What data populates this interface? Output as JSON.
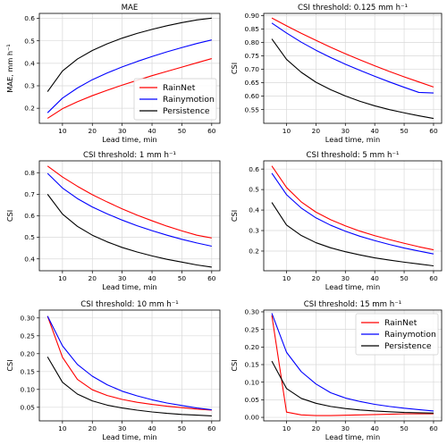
{
  "figure": {
    "legend": [
      {
        "name": "RainNet",
        "color": "#ff0000"
      },
      {
        "name": "Rainymotion",
        "color": "#0000ff"
      },
      {
        "name": "Persistence",
        "color": "#000000"
      }
    ]
  },
  "chart_data": [
    {
      "type": "line",
      "title": "MAE",
      "xlabel": "Lead time, min",
      "ylabel": "MAE, mm h⁻¹",
      "xlim": [
        2.25,
        62.75
      ],
      "ylim": [
        0.133,
        0.622
      ],
      "xticks": [
        10,
        20,
        30,
        40,
        50,
        60
      ],
      "yticks": [
        0.2,
        0.3,
        0.4,
        0.5,
        0.6
      ],
      "ytick_labels": [
        "0.2",
        "0.3",
        "0.4",
        "0.5",
        "0.6"
      ],
      "grid": true,
      "legend": "lower-right",
      "x": [
        5,
        10,
        15,
        20,
        25,
        30,
        35,
        40,
        45,
        50,
        55,
        60
      ],
      "series": [
        {
          "name": "RainNet",
          "color": "#ff0000",
          "values": [
            0.155,
            0.198,
            0.229,
            0.256,
            0.28,
            0.303,
            0.324,
            0.345,
            0.364,
            0.383,
            0.402,
            0.421
          ]
        },
        {
          "name": "Rainymotion",
          "color": "#0000ff",
          "values": [
            0.18,
            0.245,
            0.29,
            0.327,
            0.357,
            0.384,
            0.408,
            0.43,
            0.451,
            0.47,
            0.488,
            0.504
          ]
        },
        {
          "name": "Persistence",
          "color": "#000000",
          "values": [
            0.274,
            0.366,
            0.419,
            0.457,
            0.487,
            0.512,
            0.533,
            0.551,
            0.567,
            0.581,
            0.593,
            0.601
          ]
        }
      ]
    },
    {
      "type": "line",
      "title": "CSI threshold: 0.125 mm h⁻¹",
      "xlabel": "Lead time, min",
      "ylabel": "CSI",
      "xlim": [
        2.25,
        62.75
      ],
      "ylim": [
        0.499,
        0.908
      ],
      "xticks": [
        10,
        20,
        30,
        40,
        50,
        60
      ],
      "yticks": [
        0.55,
        0.6,
        0.65,
        0.7,
        0.75,
        0.8,
        0.85,
        0.9
      ],
      "ytick_labels": [
        "0.55",
        "0.60",
        "0.65",
        "0.70",
        "0.75",
        "0.80",
        "0.85",
        "0.90"
      ],
      "grid": true,
      "x": [
        5,
        10,
        15,
        20,
        25,
        30,
        35,
        40,
        45,
        50,
        55,
        60
      ],
      "series": [
        {
          "name": "RainNet",
          "color": "#ff0000",
          "values": [
            0.891,
            0.862,
            0.834,
            0.808,
            0.782,
            0.758,
            0.735,
            0.713,
            0.692,
            0.672,
            0.653,
            0.634
          ]
        },
        {
          "name": "Rainymotion",
          "color": "#0000ff",
          "values": [
            0.872,
            0.835,
            0.801,
            0.771,
            0.744,
            0.719,
            0.696,
            0.674,
            0.653,
            0.633,
            0.614,
            0.612
          ]
        },
        {
          "name": "Persistence",
          "color": "#000000",
          "values": [
            0.813,
            0.737,
            0.689,
            0.652,
            0.624,
            0.601,
            0.581,
            0.564,
            0.55,
            0.538,
            0.527,
            0.517
          ]
        }
      ]
    },
    {
      "type": "line",
      "title": "CSI threshold: 1 mm h⁻¹",
      "xlabel": "Lead time, min",
      "ylabel": "CSI",
      "xlim": [
        2.25,
        62.75
      ],
      "ylim": [
        0.345,
        0.855
      ],
      "xticks": [
        10,
        20,
        30,
        40,
        50,
        60
      ],
      "yticks": [
        0.4,
        0.5,
        0.6,
        0.7,
        0.8
      ],
      "ytick_labels": [
        "0.4",
        "0.5",
        "0.6",
        "0.7",
        "0.8"
      ],
      "grid": true,
      "x": [
        5,
        10,
        15,
        20,
        25,
        30,
        35,
        40,
        45,
        50,
        55,
        60
      ],
      "series": [
        {
          "name": "RainNet",
          "color": "#ff0000",
          "values": [
            0.831,
            0.78,
            0.737,
            0.698,
            0.664,
            0.632,
            0.603,
            0.577,
            0.552,
            0.53,
            0.51,
            0.497
          ]
        },
        {
          "name": "Rainymotion",
          "color": "#0000ff",
          "values": [
            0.797,
            0.729,
            0.68,
            0.641,
            0.609,
            0.58,
            0.554,
            0.531,
            0.51,
            0.491,
            0.474,
            0.459
          ]
        },
        {
          "name": "Persistence",
          "color": "#000000",
          "values": [
            0.7,
            0.608,
            0.551,
            0.51,
            0.479,
            0.453,
            0.432,
            0.414,
            0.398,
            0.385,
            0.372,
            0.362
          ]
        }
      ]
    },
    {
      "type": "line",
      "title": "CSI threshold: 5 mm h⁻¹",
      "xlabel": "Lead time, min",
      "ylabel": "CSI",
      "xlim": [
        2.25,
        62.75
      ],
      "ylim": [
        0.104,
        0.64
      ],
      "xticks": [
        10,
        20,
        30,
        40,
        50,
        60
      ],
      "yticks": [
        0.2,
        0.3,
        0.4,
        0.5,
        0.6
      ],
      "ytick_labels": [
        "0.2",
        "0.3",
        "0.4",
        "0.5",
        "0.6"
      ],
      "grid": true,
      "x": [
        5,
        10,
        15,
        20,
        25,
        30,
        35,
        40,
        45,
        50,
        55,
        60
      ],
      "series": [
        {
          "name": "RainNet",
          "color": "#ff0000",
          "values": [
            0.615,
            0.51,
            0.44,
            0.39,
            0.353,
            0.323,
            0.297,
            0.275,
            0.256,
            0.238,
            0.221,
            0.206
          ]
        },
        {
          "name": "Rainymotion",
          "color": "#0000ff",
          "values": [
            0.58,
            0.475,
            0.41,
            0.362,
            0.326,
            0.297,
            0.272,
            0.251,
            0.232,
            0.215,
            0.2,
            0.186
          ]
        },
        {
          "name": "Persistence",
          "color": "#000000",
          "values": [
            0.437,
            0.327,
            0.276,
            0.241,
            0.216,
            0.197,
            0.181,
            0.167,
            0.156,
            0.146,
            0.137,
            0.128
          ]
        }
      ]
    },
    {
      "type": "line",
      "title": "CSI threshold: 10 mm h⁻¹",
      "xlabel": "Lead time, min",
      "ylabel": "CSI",
      "xlim": [
        2.25,
        62.75
      ],
      "ylim": [
        0.012,
        0.322
      ],
      "xticks": [
        10,
        20,
        30,
        40,
        50,
        60
      ],
      "yticks": [
        0.05,
        0.1,
        0.15,
        0.2,
        0.25,
        0.3
      ],
      "ytick_labels": [
        "0.05",
        "0.10",
        "0.15",
        "0.20",
        "0.25",
        "0.30"
      ],
      "grid": true,
      "x": [
        5,
        10,
        15,
        20,
        25,
        30,
        35,
        40,
        45,
        50,
        55,
        60
      ],
      "series": [
        {
          "name": "RainNet",
          "color": "#ff0000",
          "values": [
            0.305,
            0.19,
            0.128,
            0.099,
            0.083,
            0.072,
            0.064,
            0.058,
            0.053,
            0.049,
            0.045,
            0.042
          ]
        },
        {
          "name": "Rainymotion",
          "color": "#0000ff",
          "values": [
            0.305,
            0.222,
            0.17,
            0.137,
            0.113,
            0.095,
            0.082,
            0.071,
            0.062,
            0.055,
            0.048,
            0.043
          ]
        },
        {
          "name": "Persistence",
          "color": "#000000",
          "values": [
            0.191,
            0.12,
            0.087,
            0.068,
            0.056,
            0.048,
            0.042,
            0.037,
            0.033,
            0.03,
            0.028,
            0.026
          ]
        }
      ]
    },
    {
      "type": "line",
      "title": "CSI threshold: 15 mm h⁻¹",
      "xlabel": "Lead time, min",
      "ylabel": "CSI",
      "xlim": [
        2.25,
        62.75
      ],
      "ylim": [
        -0.01,
        0.305
      ],
      "xticks": [
        10,
        20,
        30,
        40,
        50,
        60
      ],
      "yticks": [
        0.0,
        0.05,
        0.1,
        0.15,
        0.2,
        0.25,
        0.3
      ],
      "ytick_labels": [
        "0.00",
        "0.05",
        "0.10",
        "0.15",
        "0.20",
        "0.25",
        "0.30"
      ],
      "grid": true,
      "legend": "upper-right",
      "x": [
        5,
        10,
        15,
        20,
        25,
        30,
        35,
        40,
        45,
        50,
        55,
        60
      ],
      "series": [
        {
          "name": "RainNet",
          "color": "#ff0000",
          "values": [
            0.29,
            0.015,
            0.007,
            0.005,
            0.005,
            0.006,
            0.007,
            0.008,
            0.009,
            0.01,
            0.01,
            0.01
          ]
        },
        {
          "name": "Rainymotion",
          "color": "#0000ff",
          "values": [
            0.296,
            0.185,
            0.13,
            0.095,
            0.07,
            0.055,
            0.045,
            0.037,
            0.031,
            0.026,
            0.022,
            0.018
          ]
        },
        {
          "name": "Persistence",
          "color": "#000000",
          "values": [
            0.16,
            0.082,
            0.054,
            0.04,
            0.031,
            0.025,
            0.021,
            0.018,
            0.016,
            0.014,
            0.013,
            0.012
          ]
        }
      ]
    }
  ]
}
